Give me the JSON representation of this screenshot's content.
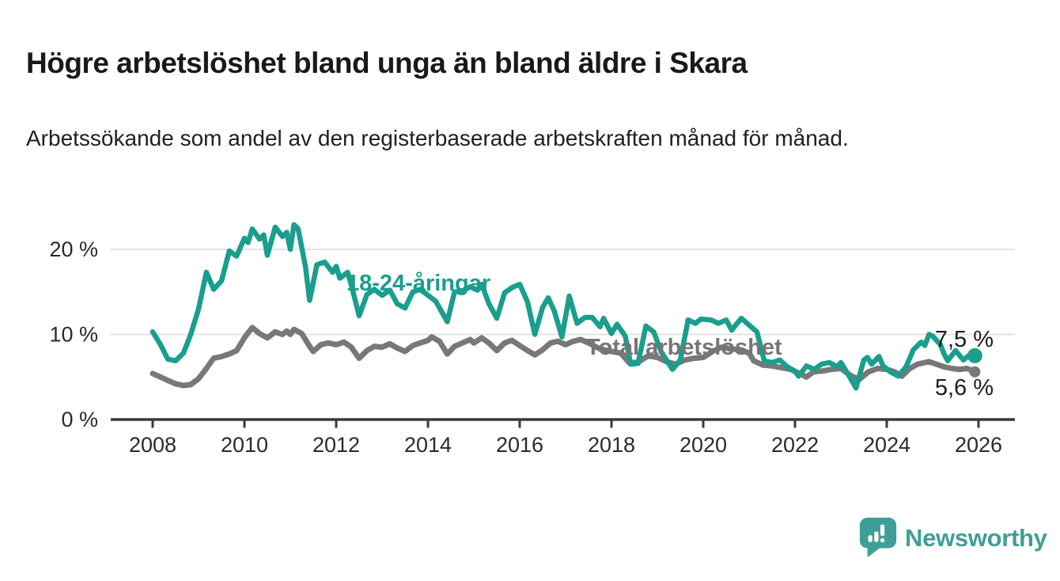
{
  "header": {
    "title": "Högre arbetslöshet bland unga än bland äldre i Skara",
    "subtitle": "Arbetssökande som andel av den registerbaserade arbetskraften månad för månad."
  },
  "chart_data": {
    "type": "line",
    "title": "Högre arbetslöshet bland unga än bland äldre i Skara",
    "subtitle": "Arbetssökande som andel av den registerbaserade arbetskraften månad för månad.",
    "unit": "%",
    "grid": "horizontal",
    "legend_position": "inline-annotations",
    "x_axis": {
      "min": 2007.1,
      "max": 2026.8,
      "ticks": [
        2008,
        2010,
        2012,
        2014,
        2016,
        2018,
        2020,
        2022,
        2024,
        2026
      ],
      "tick_labels": [
        "2008",
        "2010",
        "2012",
        "2014",
        "2016",
        "2018",
        "2020",
        "2022",
        "2024",
        "2026"
      ]
    },
    "y_axis": {
      "min": 0,
      "max": 23.5,
      "ticks": [
        0,
        10,
        20
      ],
      "tick_labels": [
        "0 %",
        "10 %",
        "20 %"
      ]
    },
    "series": [
      {
        "name": "18-24-åringar",
        "color": "#1a9e8e",
        "end_label": "7,5 %",
        "last_value": 7.5,
        "end_dot": true,
        "points": [
          [
            2008.0,
            10.3
          ],
          [
            2008.17,
            8.8
          ],
          [
            2008.33,
            7.1
          ],
          [
            2008.5,
            6.9
          ],
          [
            2008.67,
            7.8
          ],
          [
            2008.83,
            10.0
          ],
          [
            2009.0,
            13.0
          ],
          [
            2009.17,
            17.3
          ],
          [
            2009.33,
            15.3
          ],
          [
            2009.5,
            16.3
          ],
          [
            2009.67,
            19.8
          ],
          [
            2009.83,
            19.2
          ],
          [
            2010.0,
            21.3
          ],
          [
            2010.08,
            20.8
          ],
          [
            2010.17,
            22.4
          ],
          [
            2010.33,
            21.2
          ],
          [
            2010.42,
            21.7
          ],
          [
            2010.5,
            19.3
          ],
          [
            2010.67,
            22.6
          ],
          [
            2010.83,
            21.5
          ],
          [
            2010.92,
            22.0
          ],
          [
            2011.0,
            20.0
          ],
          [
            2011.08,
            22.9
          ],
          [
            2011.17,
            22.4
          ],
          [
            2011.33,
            18.0
          ],
          [
            2011.42,
            14.0
          ],
          [
            2011.58,
            18.2
          ],
          [
            2011.75,
            18.5
          ],
          [
            2011.92,
            17.3
          ],
          [
            2012.0,
            18.0
          ],
          [
            2012.08,
            16.6
          ],
          [
            2012.25,
            17.3
          ],
          [
            2012.33,
            15.8
          ],
          [
            2012.5,
            12.2
          ],
          [
            2012.67,
            14.7
          ],
          [
            2012.83,
            15.3
          ],
          [
            2013.0,
            14.6
          ],
          [
            2013.17,
            15.2
          ],
          [
            2013.33,
            13.6
          ],
          [
            2013.5,
            13.1
          ],
          [
            2013.67,
            15.0
          ],
          [
            2013.83,
            15.3
          ],
          [
            2014.0,
            14.6
          ],
          [
            2014.17,
            13.9
          ],
          [
            2014.42,
            11.5
          ],
          [
            2014.58,
            15.0
          ],
          [
            2014.75,
            15.1
          ],
          [
            2014.92,
            15.6
          ],
          [
            2015.08,
            15.2
          ],
          [
            2015.17,
            15.9
          ],
          [
            2015.33,
            13.6
          ],
          [
            2015.5,
            11.9
          ],
          [
            2015.67,
            14.9
          ],
          [
            2015.83,
            15.5
          ],
          [
            2016.0,
            15.9
          ],
          [
            2016.17,
            13.8
          ],
          [
            2016.33,
            10.0
          ],
          [
            2016.5,
            13.2
          ],
          [
            2016.62,
            14.3
          ],
          [
            2016.75,
            12.8
          ],
          [
            2016.92,
            9.7
          ],
          [
            2017.08,
            14.5
          ],
          [
            2017.25,
            11.3
          ],
          [
            2017.42,
            12.0
          ],
          [
            2017.58,
            12.0
          ],
          [
            2017.75,
            10.9
          ],
          [
            2017.83,
            11.9
          ],
          [
            2018.0,
            10.1
          ],
          [
            2018.12,
            11.2
          ],
          [
            2018.3,
            9.8
          ],
          [
            2018.42,
            6.5
          ],
          [
            2018.58,
            6.6
          ],
          [
            2018.75,
            11.0
          ],
          [
            2018.92,
            10.3
          ],
          [
            2019.08,
            8.0
          ],
          [
            2019.33,
            5.9
          ],
          [
            2019.5,
            7.0
          ],
          [
            2019.67,
            11.7
          ],
          [
            2019.83,
            11.3
          ],
          [
            2019.95,
            11.8
          ],
          [
            2020.17,
            11.7
          ],
          [
            2020.33,
            11.3
          ],
          [
            2020.5,
            11.7
          ],
          [
            2020.62,
            10.5
          ],
          [
            2020.83,
            11.9
          ],
          [
            2021.0,
            11.1
          ],
          [
            2021.17,
            10.3
          ],
          [
            2021.33,
            6.9
          ],
          [
            2021.5,
            6.7
          ],
          [
            2021.67,
            7.0
          ],
          [
            2021.83,
            6.2
          ],
          [
            2022.0,
            5.7
          ],
          [
            2022.08,
            5.1
          ],
          [
            2022.25,
            6.3
          ],
          [
            2022.42,
            5.9
          ],
          [
            2022.58,
            6.5
          ],
          [
            2022.75,
            6.7
          ],
          [
            2022.92,
            6.2
          ],
          [
            2023.0,
            6.7
          ],
          [
            2023.17,
            5.2
          ],
          [
            2023.33,
            3.7
          ],
          [
            2023.5,
            7.0
          ],
          [
            2023.58,
            7.3
          ],
          [
            2023.67,
            6.5
          ],
          [
            2023.83,
            7.4
          ],
          [
            2023.92,
            6.3
          ],
          [
            2024.08,
            5.6
          ],
          [
            2024.25,
            5.1
          ],
          [
            2024.42,
            6.2
          ],
          [
            2024.58,
            8.2
          ],
          [
            2024.75,
            9.1
          ],
          [
            2024.83,
            8.7
          ],
          [
            2024.92,
            10.0
          ],
          [
            2025.0,
            9.8
          ],
          [
            2025.17,
            8.8
          ],
          [
            2025.25,
            7.7
          ],
          [
            2025.33,
            6.9
          ],
          [
            2025.5,
            8.1
          ],
          [
            2025.67,
            7.0
          ],
          [
            2025.83,
            7.7
          ],
          [
            2025.92,
            7.5
          ]
        ]
      },
      {
        "name": "Total arbetslöshet",
        "color": "#787878",
        "end_label": "5,6 %",
        "last_value": 5.6,
        "end_dot": true,
        "points": [
          [
            2008.0,
            5.4
          ],
          [
            2008.17,
            5.0
          ],
          [
            2008.33,
            4.6
          ],
          [
            2008.5,
            4.2
          ],
          [
            2008.67,
            4.0
          ],
          [
            2008.83,
            4.1
          ],
          [
            2009.0,
            4.8
          ],
          [
            2009.17,
            6.0
          ],
          [
            2009.33,
            7.2
          ],
          [
            2009.5,
            7.4
          ],
          [
            2009.67,
            7.7
          ],
          [
            2009.83,
            8.1
          ],
          [
            2010.0,
            9.6
          ],
          [
            2010.08,
            10.2
          ],
          [
            2010.17,
            10.8
          ],
          [
            2010.33,
            10.1
          ],
          [
            2010.5,
            9.6
          ],
          [
            2010.67,
            10.3
          ],
          [
            2010.83,
            10.0
          ],
          [
            2010.92,
            10.4
          ],
          [
            2011.0,
            10.0
          ],
          [
            2011.08,
            10.6
          ],
          [
            2011.25,
            10.1
          ],
          [
            2011.42,
            8.6
          ],
          [
            2011.5,
            8.0
          ],
          [
            2011.67,
            8.8
          ],
          [
            2011.83,
            9.0
          ],
          [
            2012.0,
            8.8
          ],
          [
            2012.17,
            9.1
          ],
          [
            2012.33,
            8.5
          ],
          [
            2012.5,
            7.2
          ],
          [
            2012.67,
            8.1
          ],
          [
            2012.83,
            8.6
          ],
          [
            2013.0,
            8.5
          ],
          [
            2013.17,
            8.9
          ],
          [
            2013.33,
            8.4
          ],
          [
            2013.5,
            8.0
          ],
          [
            2013.67,
            8.7
          ],
          [
            2013.83,
            9.0
          ],
          [
            2014.0,
            9.3
          ],
          [
            2014.08,
            9.7
          ],
          [
            2014.25,
            9.2
          ],
          [
            2014.42,
            7.7
          ],
          [
            2014.58,
            8.6
          ],
          [
            2014.75,
            9.0
          ],
          [
            2014.92,
            9.4
          ],
          [
            2015.0,
            9.0
          ],
          [
            2015.17,
            9.6
          ],
          [
            2015.33,
            9.0
          ],
          [
            2015.5,
            8.1
          ],
          [
            2015.67,
            9.0
          ],
          [
            2015.83,
            9.3
          ],
          [
            2016.0,
            8.7
          ],
          [
            2016.17,
            8.1
          ],
          [
            2016.33,
            7.6
          ],
          [
            2016.5,
            8.2
          ],
          [
            2016.67,
            9.0
          ],
          [
            2016.83,
            9.2
          ],
          [
            2017.0,
            8.8
          ],
          [
            2017.17,
            9.2
          ],
          [
            2017.33,
            9.4
          ],
          [
            2017.5,
            9.0
          ],
          [
            2017.75,
            8.3
          ],
          [
            2018.0,
            8.0
          ],
          [
            2018.2,
            7.8
          ],
          [
            2018.4,
            6.6
          ],
          [
            2018.6,
            6.8
          ],
          [
            2018.8,
            7.5
          ],
          [
            2019.0,
            7.3
          ],
          [
            2019.2,
            6.8
          ],
          [
            2019.4,
            6.5
          ],
          [
            2019.6,
            7.0
          ],
          [
            2019.8,
            7.2
          ],
          [
            2020.0,
            7.3
          ],
          [
            2020.2,
            8.0
          ],
          [
            2020.4,
            8.5
          ],
          [
            2020.6,
            8.3
          ],
          [
            2020.8,
            8.2
          ],
          [
            2021.0,
            7.8
          ],
          [
            2021.1,
            6.9
          ],
          [
            2021.3,
            6.4
          ],
          [
            2021.5,
            6.3
          ],
          [
            2021.7,
            6.1
          ],
          [
            2021.9,
            5.9
          ],
          [
            2022.1,
            5.4
          ],
          [
            2022.25,
            5.0
          ],
          [
            2022.4,
            5.6
          ],
          [
            2022.6,
            5.7
          ],
          [
            2022.8,
            5.9
          ],
          [
            2023.0,
            6.0
          ],
          [
            2023.2,
            5.2
          ],
          [
            2023.4,
            4.7
          ],
          [
            2023.6,
            5.6
          ],
          [
            2023.8,
            6.0
          ],
          [
            2024.0,
            5.9
          ],
          [
            2024.17,
            5.6
          ],
          [
            2024.33,
            5.1
          ],
          [
            2024.5,
            6.0
          ],
          [
            2024.67,
            6.5
          ],
          [
            2024.83,
            6.7
          ],
          [
            2024.92,
            6.8
          ],
          [
            2025.08,
            6.5
          ],
          [
            2025.25,
            6.2
          ],
          [
            2025.42,
            6.0
          ],
          [
            2025.58,
            5.9
          ],
          [
            2025.75,
            6.0
          ],
          [
            2025.92,
            5.6
          ]
        ]
      }
    ]
  },
  "branding": {
    "logo_text": "Newsworthy",
    "logo_color": "#3f9e97",
    "logo_icon": "speech-bubble-bar-chart"
  }
}
